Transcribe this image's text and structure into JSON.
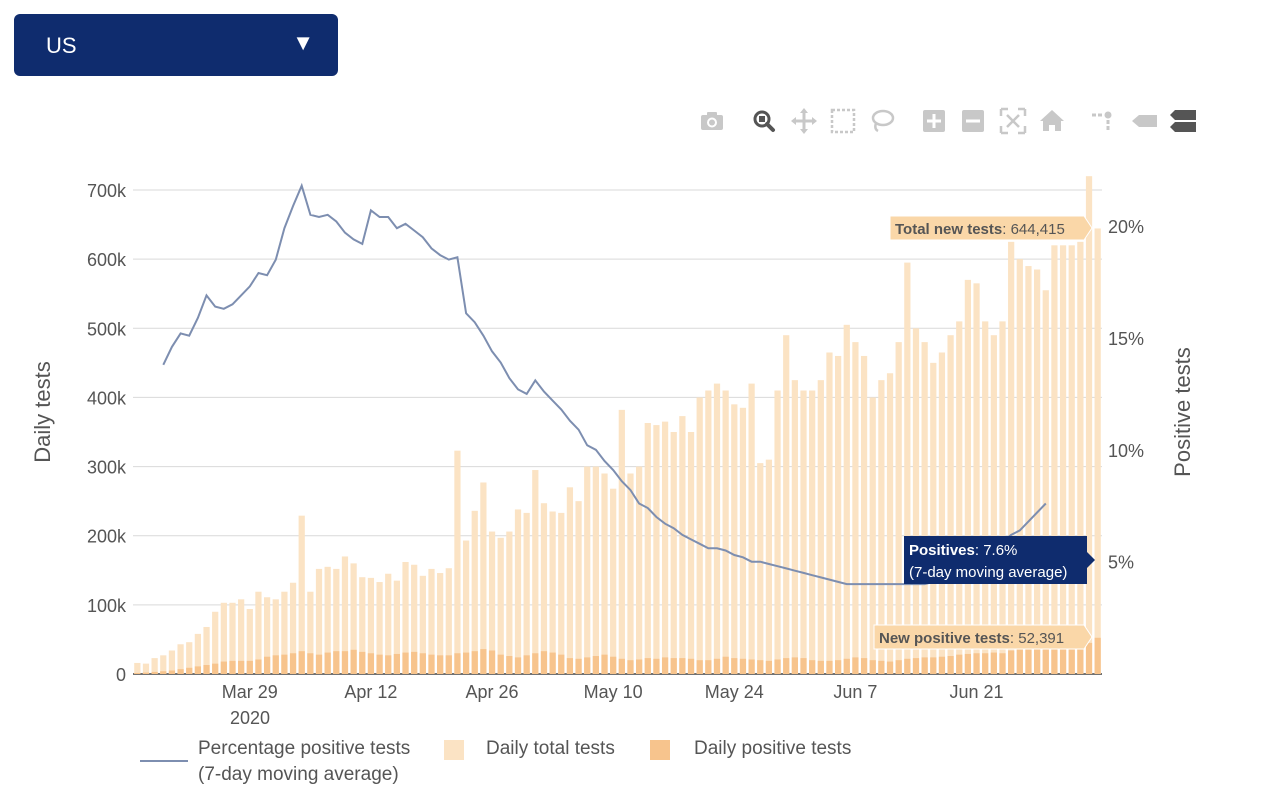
{
  "dropdown": {
    "value": "US",
    "arrow": "▼"
  },
  "modebar": {
    "buttons": [
      {
        "name": "camera-icon"
      },
      {
        "name": "zoom-icon"
      },
      {
        "name": "pan-icon"
      },
      {
        "name": "box-select-icon"
      },
      {
        "name": "lasso-select-icon"
      },
      {
        "name": "zoom-in-icon"
      },
      {
        "name": "zoom-out-icon"
      },
      {
        "name": "autoscale-icon"
      },
      {
        "name": "reset-axes-icon"
      },
      {
        "name": "spike-lines-icon"
      },
      {
        "name": "hover-closest-icon"
      },
      {
        "name": "hover-compare-icon"
      }
    ]
  },
  "colors": {
    "total_bar": "#fbe3c4",
    "positive_bar": "#f7c48d",
    "line": "#7d8eb0",
    "tooltip_total_bg": "#fad7a8",
    "tooltip_pos_bg": "#0f2c6e",
    "dropdown_bg": "#0f2c6e"
  },
  "legend": {
    "line_label_1": "Percentage positive tests",
    "line_label_2": "(7-day moving average)",
    "total_label": "Daily total tests",
    "positive_label": "Daily positive tests"
  },
  "tooltips": {
    "total": {
      "label": "Total new tests",
      "value": ": 644,415"
    },
    "positives": {
      "label": "Positives",
      "value": ": 7.6%",
      "line2": "(7-day moving average)"
    },
    "new_positive": {
      "label": "New positive tests",
      "value": ": 52,391"
    }
  },
  "chart_data": {
    "type": "bar",
    "title": "",
    "xlabel": "",
    "ylabel": "Daily tests",
    "y2label": "Positive tests",
    "x_start": "2020-03-16",
    "x_ticks": [
      "Mar 29",
      "Apr 12",
      "Apr 26",
      "May 10",
      "May 24",
      "Jun 7",
      "Jun 21"
    ],
    "x_tick_year": "2020",
    "y_ticks": [
      "0",
      "100k",
      "200k",
      "300k",
      "400k",
      "500k",
      "600k",
      "700k"
    ],
    "y_values": [
      0,
      100000,
      200000,
      300000,
      400000,
      500000,
      600000,
      700000
    ],
    "y2_ticks": [
      "5%",
      "10%",
      "15%",
      "20%"
    ],
    "y2_values": [
      5,
      10,
      15,
      20
    ],
    "ylim": [
      0,
      700000
    ],
    "y2lim": [
      3.45,
      21.5
    ],
    "grid": true,
    "legend_position": "bottom",
    "series": [
      {
        "name": "Daily total tests",
        "values": [
          16000,
          15000,
          23000,
          27000,
          34000,
          43000,
          46000,
          58000,
          68000,
          90000,
          103000,
          103000,
          108000,
          94000,
          119000,
          111000,
          108000,
          119000,
          132000,
          229000,
          119000,
          152000,
          155000,
          152000,
          170000,
          160000,
          140000,
          139000,
          133000,
          145000,
          135000,
          162000,
          158000,
          142000,
          152000,
          146000,
          153000,
          323000,
          193000,
          236000,
          277000,
          206000,
          197000,
          206000,
          238000,
          233000,
          295000,
          247000,
          235000,
          233000,
          270000,
          250000,
          300000,
          300000,
          290000,
          268000,
          382000,
          290000,
          300000,
          363000,
          360000,
          365000,
          350000,
          373000,
          350000,
          400000,
          410000,
          420000,
          410000,
          390000,
          385000,
          420000,
          305000,
          310000,
          410000,
          490000,
          425000,
          410000,
          410000,
          425000,
          465000,
          460000,
          505000,
          480000,
          460000,
          400000,
          425000,
          435000,
          480000,
          595000,
          500000,
          480000,
          450000,
          465000,
          490000,
          510000,
          570000,
          565000,
          510000,
          490000,
          510000,
          625000,
          600000,
          590000,
          585000,
          555000,
          620000,
          620000,
          620000,
          625000,
          720000,
          644415
        ],
        "color": "#fbe3c4"
      },
      {
        "name": "Daily positive tests",
        "values": [
          1500,
          2000,
          3000,
          4000,
          5000,
          7000,
          9000,
          11000,
          13000,
          15000,
          18000,
          19000,
          19000,
          19000,
          21000,
          25000,
          27000,
          28000,
          30000,
          33000,
          30000,
          28000,
          31000,
          33000,
          33000,
          35000,
          32000,
          30000,
          28000,
          27000,
          29000,
          31000,
          32000,
          30000,
          28000,
          27000,
          27000,
          30000,
          31000,
          33000,
          36000,
          34000,
          28000,
          26000,
          24000,
          27000,
          30000,
          33000,
          31000,
          28000,
          23000,
          22000,
          24000,
          26000,
          28000,
          25000,
          22000,
          20000,
          21000,
          23000,
          22000,
          24000,
          23000,
          23000,
          22000,
          20000,
          20000,
          22000,
          25000,
          23000,
          22000,
          21000,
          20000,
          19000,
          21000,
          23000,
          24000,
          23000,
          20000,
          19000,
          19000,
          20000,
          22000,
          24000,
          23000,
          20000,
          19000,
          18000,
          20000,
          22000,
          23000,
          24000,
          24000,
          25000,
          26000,
          28000,
          29000,
          30000,
          30000,
          31000,
          30000,
          34000,
          36000,
          38000,
          39000,
          40000,
          42000,
          44000,
          45000,
          45000,
          45000,
          52391
        ],
        "color": "#f7c48d"
      },
      {
        "name": "Percentage positive tests (7-day moving average)",
        "axis": "y2",
        "values": [
          null,
          null,
          null,
          13.8,
          14.6,
          15.2,
          15.1,
          15.9,
          16.9,
          16.4,
          16.3,
          16.5,
          16.9,
          17.3,
          17.9,
          17.8,
          18.5,
          19.9,
          20.9,
          21.8,
          20.5,
          20.4,
          20.5,
          20.2,
          19.7,
          19.4,
          19.2,
          20.7,
          20.4,
          20.4,
          19.9,
          20.1,
          19.8,
          19.5,
          19.0,
          18.7,
          18.5,
          18.6,
          16.1,
          15.7,
          15.1,
          14.4,
          13.9,
          13.2,
          12.7,
          12.5,
          13.1,
          12.6,
          12.2,
          11.8,
          11.3,
          10.9,
          10.2,
          10.0,
          9.5,
          9.1,
          8.6,
          8.2,
          7.6,
          7.4,
          7.0,
          6.7,
          6.5,
          6.2,
          6.0,
          5.8,
          5.6,
          5.6,
          5.5,
          5.3,
          5.2,
          5.0,
          5.0,
          4.9,
          4.8,
          4.7,
          4.6,
          4.5,
          4.4,
          4.3,
          4.2,
          4.1,
          4.0,
          4.0,
          4.0,
          4.0,
          4.0,
          4.0,
          4.0,
          4.0,
          4.0,
          4.0,
          4.1,
          4.2,
          4.4,
          4.6,
          4.8,
          5.0,
          5.3,
          5.6,
          5.9,
          6.2,
          6.4,
          6.8,
          7.2,
          7.6,
          null,
          null,
          null,
          null,
          null,
          null
        ],
        "color": "#7d8eb0"
      }
    ]
  }
}
